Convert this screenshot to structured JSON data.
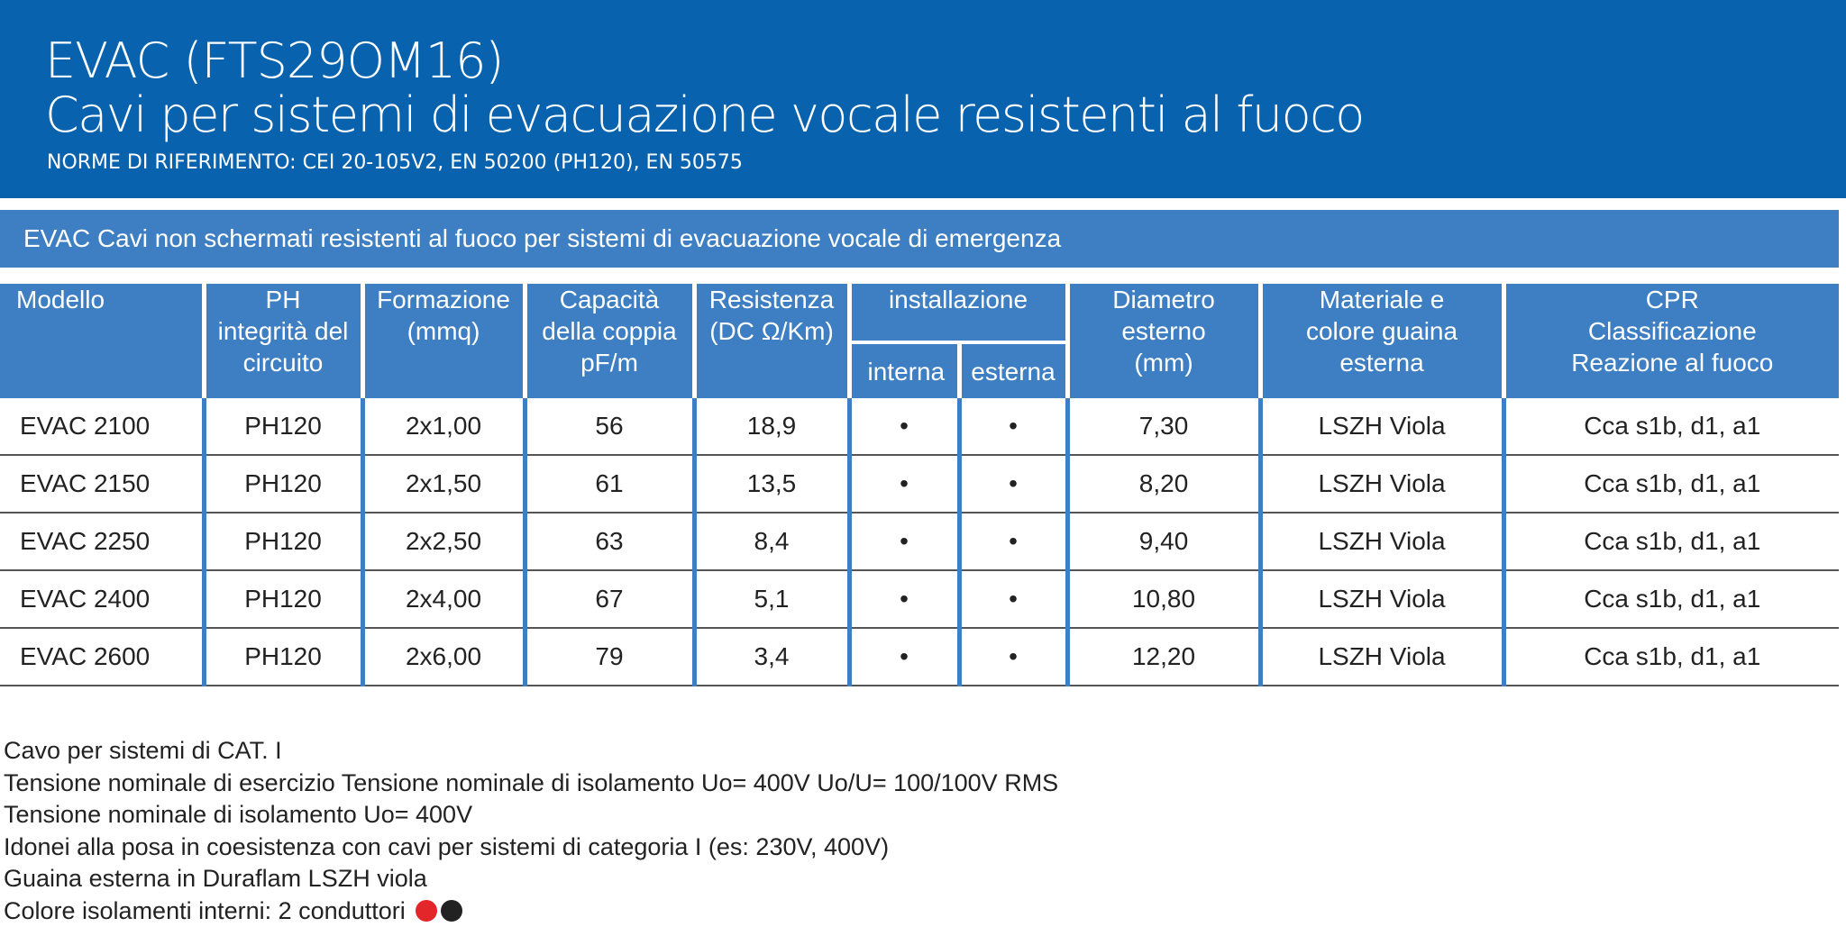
{
  "header": {
    "title": "EVAC (FTS29OM16)",
    "subtitle": "Cavi per sistemi di evacuazione vocale resistenti al fuoco",
    "norms": "NORME DI RIFERIMENTO: CEI 20-105V2, EN 50200 (PH120), EN 50575"
  },
  "band": "EVAC Cavi non schermati resistenti al fuoco per sistemi di evacuazione vocale di emergenza",
  "columns": {
    "modello": "Modello",
    "ph": [
      "PH",
      "integrità del",
      "circuito"
    ],
    "formazione": [
      "Formazione",
      "(mmq)"
    ],
    "capacita": [
      "Capacità",
      "della coppia",
      "pF/m"
    ],
    "resistenza": [
      "Resistenza",
      "(DC Ω/Km)"
    ],
    "installazione": "installazione",
    "interna": "interna",
    "esterna": "esterna",
    "diametro": [
      "Diametro",
      "esterno",
      "(mm)"
    ],
    "materiale": [
      "Materiale e",
      "colore guaina",
      "esterna"
    ],
    "cpr": [
      "CPR",
      "Classificazione",
      "Reazione al fuoco"
    ]
  },
  "rows": [
    [
      "EVAC 2100",
      "PH120",
      "2x1,00",
      "56",
      "18,9",
      "•",
      "•",
      "7,30",
      "LSZH Viola",
      "Cca s1b, d1, a1"
    ],
    [
      "EVAC 2150",
      "PH120",
      "2x1,50",
      "61",
      "13,5",
      "•",
      "•",
      "8,20",
      "LSZH Viola",
      "Cca s1b, d1, a1"
    ],
    [
      "EVAC 2250",
      "PH120",
      "2x2,50",
      "63",
      "8,4",
      "•",
      "•",
      "9,40",
      "LSZH Viola",
      "Cca s1b, d1, a1"
    ],
    [
      "EVAC 2400",
      "PH120",
      "2x4,00",
      "67",
      "5,1",
      "•",
      "•",
      "10,80",
      "LSZH Viola",
      "Cca s1b, d1, a1"
    ],
    [
      "EVAC 2600",
      "PH120",
      "2x6,00",
      "79",
      "3,4",
      "•",
      "•",
      "12,20",
      "LSZH Viola",
      "Cca s1b, d1, a1"
    ]
  ],
  "notes": [
    "Cavo per sistemi di CAT. I",
    "Tensione nominale di esercizio Tensione nominale di isolamento Uo= 400V Uo/U= 100/100V RMS",
    "Tensione nominale di isolamento Uo= 400V",
    "Idonei alla posa in coesistenza con cavi per sistemi di categoria I (es: 230V, 400V)",
    "Guaina esterna in Duraflam LSZH viola",
    "Colore isolamenti interni: 2 conduttori"
  ],
  "conductor_colors": [
    "#e3262a",
    "#222222"
  ]
}
